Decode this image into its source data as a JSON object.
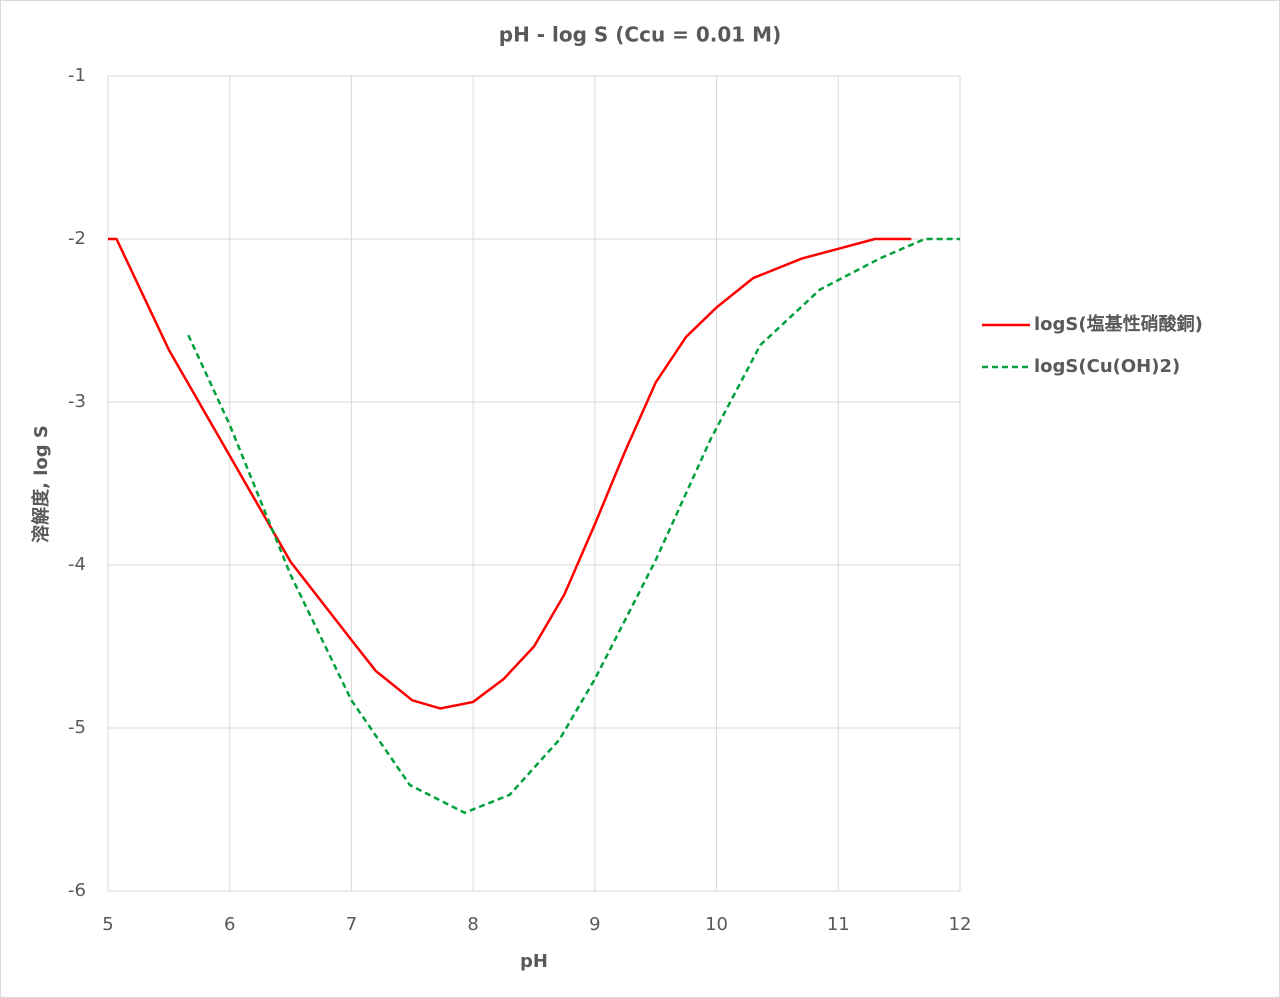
{
  "chart_data": {
    "type": "line",
    "title": "pH - log S (Ccu = 0.01 M)",
    "x_label": "pH",
    "y_label": "溶解度, log S",
    "xlim": [
      5,
      12
    ],
    "xticks": [
      5,
      6,
      7,
      8,
      9,
      10,
      11,
      12
    ],
    "ylim": [
      -6,
      -1
    ],
    "yticks": [
      -1,
      -2,
      -3,
      -4,
      -5,
      -6
    ],
    "grid": true,
    "legend": "right",
    "series": [
      {
        "name": "logS(塩基性硝酸銅)",
        "color": "#ff0000",
        "line_style": "solid",
        "x": [
          5,
          5.07,
          5.5,
          6,
          6.5,
          7,
          7.2,
          7.5,
          7.73,
          8,
          8.25,
          8.5,
          8.75,
          9,
          9.25,
          9.5,
          9.75,
          10,
          10.3,
          10.7,
          11,
          11.3,
          11.6
        ],
        "values": [
          -2,
          -2,
          -2.68,
          -3.33,
          -3.98,
          -4.46,
          -4.65,
          -4.83,
          -4.88,
          -4.84,
          -4.7,
          -4.5,
          -4.18,
          -3.75,
          -3.3,
          -2.88,
          -2.6,
          -2.42,
          -2.24,
          -2.12,
          -2.06,
          -2.0,
          -2.0
        ]
      },
      {
        "name": "logS(Cu(OH)2)",
        "color": "#00a03c",
        "line_style": "dashed",
        "x": [
          5.66,
          6,
          6.5,
          7,
          7.48,
          7.93,
          8.3,
          8.71,
          9,
          9.5,
          9.95,
          10.36,
          10.85,
          11.34,
          11.71,
          12
        ],
        "values": [
          -2.59,
          -3.14,
          -4.06,
          -4.83,
          -5.35,
          -5.52,
          -5.41,
          -5.07,
          -4.7,
          -3.97,
          -3.23,
          -2.65,
          -2.31,
          -2.12,
          -2.0,
          -2.0
        ]
      }
    ]
  }
}
